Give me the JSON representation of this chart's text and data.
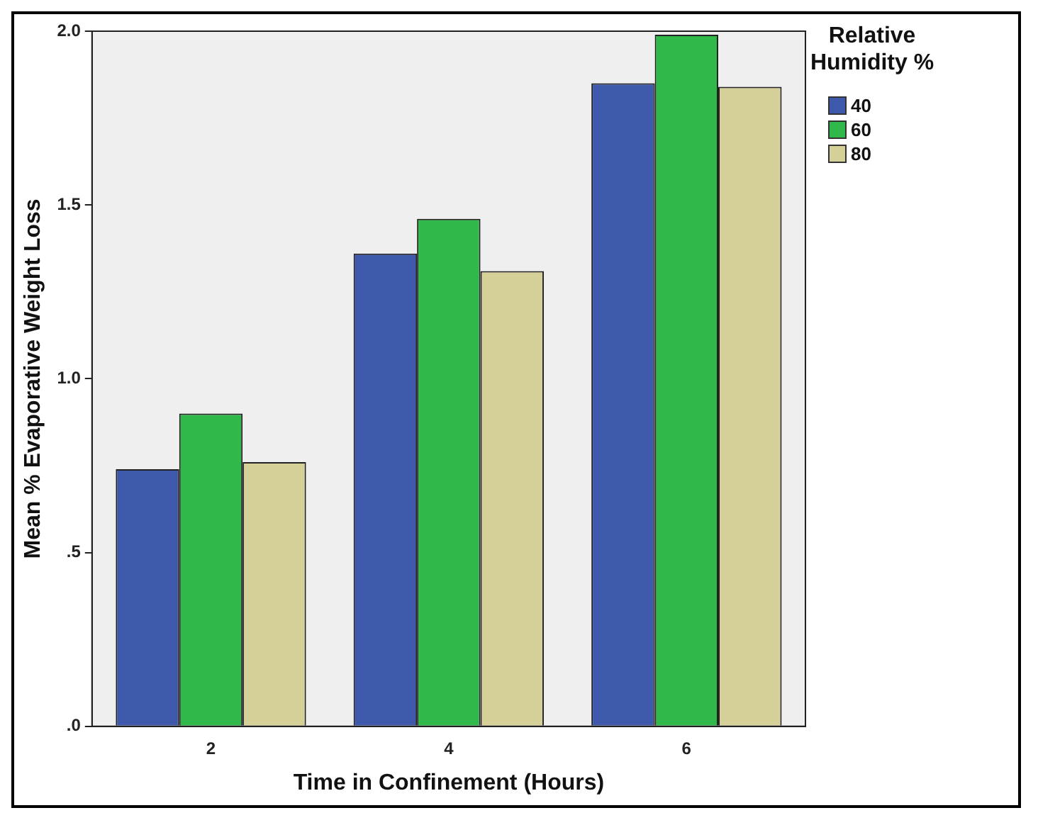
{
  "chart_data": {
    "type": "bar",
    "xlabel": "Time in Confinement (Hours)",
    "ylabel": "Mean % Evaporative Weight Loss",
    "legend_title": "Relative Humidity %",
    "categories": [
      "2",
      "4",
      "6"
    ],
    "series": [
      {
        "name": "40",
        "color": "#3e58ac",
        "values": [
          0.74,
          1.36,
          1.85
        ]
      },
      {
        "name": "60",
        "color": "#31b84a",
        "values": [
          0.9,
          1.46,
          1.99
        ]
      },
      {
        "name": "80",
        "color": "#d5cf98",
        "values": [
          0.76,
          1.31,
          1.84
        ]
      }
    ],
    "ylim": [
      0,
      2.0
    ],
    "yticks": [
      {
        "value": 0,
        "label": ".0"
      },
      {
        "value": 0.5,
        "label": ".5"
      },
      {
        "value": 1,
        "label": "1.0"
      },
      {
        "value": 1.5,
        "label": "1.5"
      },
      {
        "value": 2,
        "label": "2.0"
      }
    ],
    "grid": false,
    "legend": "top right"
  }
}
